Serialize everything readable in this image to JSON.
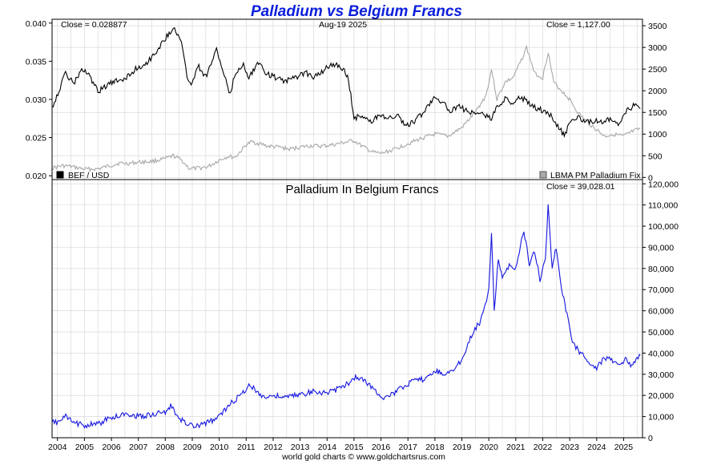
{
  "title": "Palladium vs Belgium Francs",
  "date_label": "Aug-19  2025",
  "footer": "world gold charts © www.goldchartsrus.com",
  "colors": {
    "bef": "#000000",
    "palladium_fix": "#a8a8a8",
    "pd_in_bef": "#1515e0",
    "title": "#0a1edc"
  },
  "chart_data": [
    {
      "type": "line",
      "panel": "top",
      "close_left": "Close = 0.028877",
      "close_right": "Close = 1,127.00",
      "x_ticks": [
        "2004",
        "2005",
        "2006",
        "2007",
        "2008",
        "2009",
        "2010",
        "2011",
        "2012",
        "2013",
        "2014",
        "2015",
        "2016",
        "2017",
        "2018",
        "2019",
        "2020",
        "2021",
        "2022",
        "2023",
        "2024",
        "2025"
      ],
      "xlim": [
        2003.8,
        2025.7
      ],
      "y_left": {
        "ticks": [
          "0.020",
          "0.025",
          "0.030",
          "0.035",
          "0.040"
        ],
        "tick_values": [
          0.02,
          0.025,
          0.03,
          0.035,
          0.04
        ],
        "lim": [
          0.0195,
          0.0405
        ]
      },
      "y_right": {
        "ticks": [
          "0",
          "500",
          "1000",
          "1500",
          "2000",
          "2500",
          "3000",
          "3500"
        ],
        "tick_values": [
          0,
          500,
          1000,
          1500,
          2000,
          2500,
          3000,
          3500
        ],
        "lim": [
          -50,
          3650
        ]
      },
      "grid": true,
      "legend_location": "bottom",
      "series": [
        {
          "name": "BEF / USD",
          "axis": "left",
          "x": [
            2003.8,
            2004.1,
            2004.3,
            2004.6,
            2004.9,
            2005.2,
            2005.5,
            2005.9,
            2006.3,
            2006.6,
            2006.9,
            2007.2,
            2007.5,
            2007.8,
            2008.1,
            2008.3,
            2008.6,
            2008.8,
            2009.0,
            2009.2,
            2009.5,
            2009.9,
            2010.2,
            2010.4,
            2010.6,
            2010.9,
            2011.1,
            2011.3,
            2011.5,
            2011.7,
            2012.0,
            2012.3,
            2012.6,
            2012.9,
            2013.2,
            2013.5,
            2013.8,
            2014.1,
            2014.4,
            2014.6,
            2014.8,
            2015.0,
            2015.3,
            2015.6,
            2016.0,
            2016.3,
            2016.6,
            2016.9,
            2017.2,
            2017.5,
            2017.8,
            2018.0,
            2018.3,
            2018.6,
            2018.9,
            2019.2,
            2019.5,
            2019.8,
            2020.1,
            2020.3,
            2020.6,
            2020.9,
            2021.1,
            2021.4,
            2021.7,
            2022.0,
            2022.3,
            2022.6,
            2022.8,
            2023.0,
            2023.3,
            2023.6,
            2023.9,
            2024.2,
            2024.5,
            2024.8,
            2025.0,
            2025.2,
            2025.4,
            2025.62
          ],
          "values": [
            0.029,
            0.0315,
            0.0335,
            0.032,
            0.034,
            0.033,
            0.031,
            0.032,
            0.0325,
            0.033,
            0.034,
            0.0345,
            0.0355,
            0.037,
            0.0385,
            0.0395,
            0.0375,
            0.033,
            0.032,
            0.0345,
            0.033,
            0.0365,
            0.033,
            0.0305,
            0.0335,
            0.0345,
            0.033,
            0.034,
            0.035,
            0.0335,
            0.033,
            0.0325,
            0.0325,
            0.033,
            0.0335,
            0.033,
            0.0335,
            0.0345,
            0.0345,
            0.034,
            0.0325,
            0.0275,
            0.028,
            0.027,
            0.028,
            0.0275,
            0.028,
            0.0265,
            0.027,
            0.028,
            0.0295,
            0.0305,
            0.0295,
            0.0285,
            0.029,
            0.0285,
            0.0282,
            0.028,
            0.0275,
            0.029,
            0.03,
            0.0295,
            0.0305,
            0.0298,
            0.029,
            0.0285,
            0.028,
            0.0263,
            0.0252,
            0.027,
            0.0278,
            0.027,
            0.0272,
            0.027,
            0.0275,
            0.0266,
            0.028,
            0.0288,
            0.0292,
            0.0288
          ]
        },
        {
          "name": "LBMA PM Palladium Fix",
          "axis": "right",
          "x": [
            2003.8,
            2004.2,
            2004.5,
            2005.0,
            2005.5,
            2006.0,
            2006.3,
            2006.6,
            2007.0,
            2007.5,
            2008.0,
            2008.3,
            2008.6,
            2008.9,
            2009.2,
            2009.6,
            2010.0,
            2010.3,
            2010.6,
            2011.0,
            2011.2,
            2011.5,
            2011.8,
            2012.2,
            2012.6,
            2013.0,
            2013.4,
            2013.8,
            2014.2,
            2014.6,
            2015.0,
            2015.3,
            2015.7,
            2016.0,
            2016.5,
            2017.0,
            2017.5,
            2018.0,
            2018.5,
            2019.0,
            2019.5,
            2019.9,
            2020.1,
            2020.3,
            2020.6,
            2020.9,
            2021.2,
            2021.4,
            2021.7,
            2022.0,
            2022.2,
            2022.4,
            2022.7,
            2023.0,
            2023.3,
            2023.6,
            2024.0,
            2024.3,
            2024.6,
            2025.0,
            2025.3,
            2025.62
          ],
          "values": [
            220,
            270,
            250,
            190,
            195,
            280,
            330,
            320,
            350,
            370,
            430,
            500,
            400,
            200,
            210,
            250,
            400,
            480,
            470,
            750,
            820,
            780,
            720,
            700,
            650,
            700,
            730,
            720,
            750,
            800,
            850,
            720,
            580,
            550,
            650,
            780,
            900,
            1000,
            950,
            1150,
            1500,
            1900,
            2500,
            1800,
            2200,
            2300,
            2700,
            3000,
            2400,
            2300,
            2900,
            2200,
            2000,
            1800,
            1500,
            1300,
            1100,
            950,
            1000,
            950,
            1050,
            1127
          ]
        }
      ]
    },
    {
      "type": "line",
      "panel": "bottom",
      "title": "Palladium In Belgium Francs",
      "close_right": "Close = 39,028.01",
      "xlim": [
        2003.8,
        2025.7
      ],
      "y_right": {
        "ticks": [
          "0",
          "10,000",
          "20,000",
          "30,000",
          "40,000",
          "50,000",
          "60,000",
          "70,000",
          "80,000",
          "90,000",
          "100,000",
          "110,000",
          "120,000"
        ],
        "tick_values": [
          0,
          10000,
          20000,
          30000,
          40000,
          50000,
          60000,
          70000,
          80000,
          90000,
          100000,
          110000,
          120000
        ],
        "lim": [
          0,
          122000
        ]
      },
      "grid": true,
      "series": [
        {
          "name": "",
          "x": [
            2003.8,
            2004.1,
            2004.3,
            2004.6,
            2005.0,
            2005.5,
            2005.9,
            2006.3,
            2006.6,
            2007.0,
            2007.5,
            2008.0,
            2008.2,
            2008.5,
            2008.8,
            2009.1,
            2009.5,
            2009.9,
            2010.2,
            2010.5,
            2010.8,
            2011.1,
            2011.4,
            2011.7,
            2012.0,
            2012.4,
            2012.8,
            2013.2,
            2013.6,
            2014.0,
            2014.4,
            2014.8,
            2015.1,
            2015.5,
            2015.8,
            2016.1,
            2016.5,
            2016.9,
            2017.3,
            2017.7,
            2018.0,
            2018.4,
            2018.8,
            2019.1,
            2019.4,
            2019.7,
            2020.0,
            2020.1,
            2020.2,
            2020.35,
            2020.5,
            2020.8,
            2021.0,
            2021.3,
            2021.5,
            2021.7,
            2021.9,
            2022.1,
            2022.2,
            2022.35,
            2022.5,
            2022.7,
            2022.9,
            2023.1,
            2023.4,
            2023.7,
            2024.0,
            2024.3,
            2024.6,
            2024.9,
            2025.1,
            2025.3,
            2025.5,
            2025.62
          ],
          "values": [
            7000,
            8000,
            10000,
            7000,
            6000,
            6500,
            9000,
            10500,
            11500,
            10000,
            11000,
            12000,
            15000,
            9000,
            7000,
            5000,
            7000,
            9000,
            13000,
            17000,
            20000,
            25000,
            22000,
            19000,
            20000,
            19000,
            20000,
            21000,
            22000,
            21000,
            23000,
            26000,
            29000,
            26000,
            22000,
            19000,
            21000,
            25000,
            27000,
            28000,
            32000,
            30000,
            33000,
            40000,
            50000,
            55000,
            70000,
            98000,
            60000,
            85000,
            75000,
            82000,
            80000,
            98000,
            82000,
            88000,
            75000,
            85000,
            110000,
            80000,
            90000,
            70000,
            58000,
            45000,
            40000,
            36000,
            33000,
            38000,
            36000,
            35000,
            37000,
            34000,
            38000,
            39028
          ]
        }
      ]
    }
  ]
}
